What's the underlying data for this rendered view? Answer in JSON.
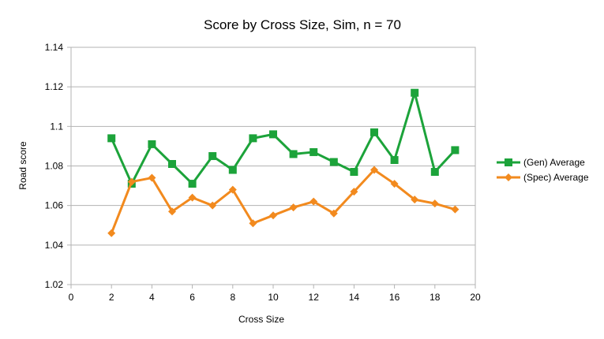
{
  "chart_data": {
    "type": "line",
    "title": "Score by Cross Size, Sim, n = 70",
    "xlabel": "Cross Size",
    "ylabel": "Road score",
    "xlim": [
      0,
      20
    ],
    "ylim": [
      1.02,
      1.14
    ],
    "x_ticks": [
      "0",
      "2",
      "4",
      "6",
      "8",
      "10",
      "12",
      "14",
      "16",
      "18",
      "20"
    ],
    "y_ticks": [
      "1.02",
      "1.04",
      "1.06",
      "1.08",
      "1.1",
      "1.12",
      "1.14"
    ],
    "grid": "horizontal",
    "legend_position": "right",
    "x": [
      2,
      3,
      4,
      5,
      6,
      7,
      8,
      9,
      10,
      11,
      12,
      13,
      14,
      15,
      16,
      17,
      18,
      19
    ],
    "series": [
      {
        "name": "(Gen) Average",
        "color": "#1ca33a",
        "marker": "square",
        "values": [
          1.094,
          1.071,
          1.091,
          1.081,
          1.071,
          1.085,
          1.078,
          1.094,
          1.096,
          1.086,
          1.087,
          1.082,
          1.077,
          1.097,
          1.083,
          1.117,
          1.077,
          1.088
        ]
      },
      {
        "name": "(Spec) Average",
        "color": "#f28a1e",
        "marker": "diamond",
        "values": [
          1.046,
          1.072,
          1.074,
          1.057,
          1.064,
          1.06,
          1.068,
          1.051,
          1.055,
          1.059,
          1.062,
          1.056,
          1.067,
          1.078,
          1.071,
          1.063,
          1.061,
          1.058
        ]
      }
    ]
  }
}
